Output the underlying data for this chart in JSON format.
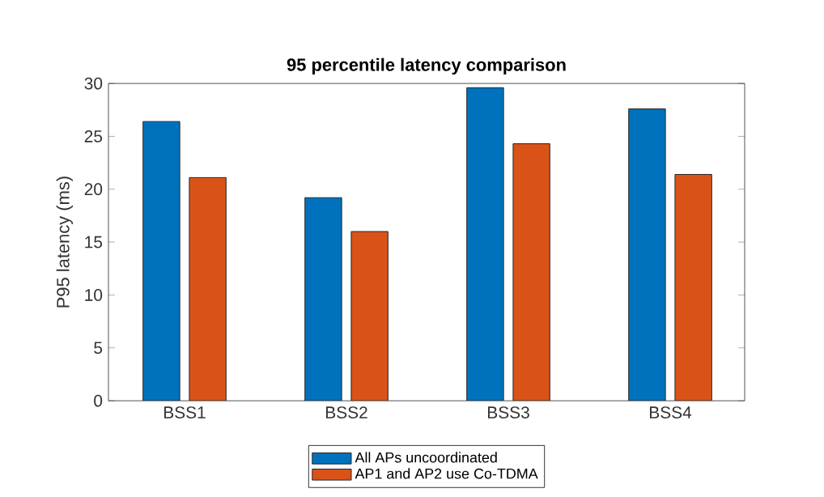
{
  "chart_data": {
    "type": "bar",
    "title": "95 percentile latency comparison",
    "ylabel": "P95 latency (ms)",
    "categories": [
      "BSS1",
      "BSS2",
      "BSS3",
      "BSS4"
    ],
    "series": [
      {
        "name": "All APs uncoordinated",
        "color": "#0072bd",
        "values": [
          26.4,
          19.2,
          29.6,
          27.6
        ]
      },
      {
        "name": "AP1 and AP2 use Co-TDMA",
        "color": "#d95319",
        "values": [
          21.1,
          16.0,
          24.3,
          21.4
        ]
      }
    ],
    "ylim": [
      0,
      30
    ],
    "yticks": [
      0,
      5,
      10,
      15,
      20,
      25,
      30
    ],
    "grid": false,
    "legend": "bottom"
  }
}
